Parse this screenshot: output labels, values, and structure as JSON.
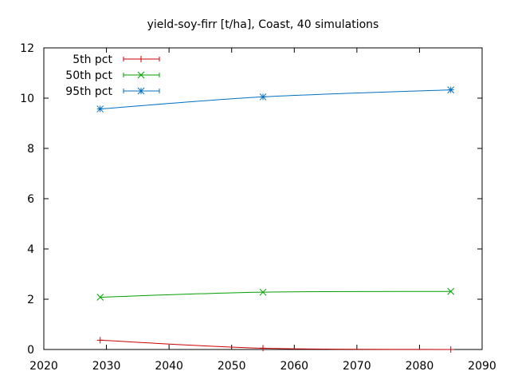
{
  "chart_data": {
    "type": "line",
    "title": "yield-soy-firr [t/ha], Coast, 40 simulations",
    "xlabel": "",
    "ylabel": "",
    "xlim": [
      2020,
      2090
    ],
    "ylim": [
      0,
      12
    ],
    "xticks": [
      2020,
      2030,
      2040,
      2050,
      2060,
      2070,
      2080,
      2090
    ],
    "yticks": [
      0,
      2,
      4,
      6,
      8,
      10,
      12
    ],
    "x": [
      2029,
      2055,
      2085
    ],
    "series": [
      {
        "name": "5th pct",
        "values": [
          0.37,
          0.05,
          0.0
        ],
        "color": "#cc0000",
        "marker": "plus"
      },
      {
        "name": "50th pct",
        "values": [
          2.08,
          2.28,
          2.31
        ],
        "color": "#00a000",
        "marker": "cross"
      },
      {
        "name": "95th pct",
        "values": [
          9.57,
          10.05,
          10.33
        ],
        "color": "#0070c0",
        "marker": "star"
      }
    ],
    "legend_position": "top-left",
    "grid": false
  }
}
